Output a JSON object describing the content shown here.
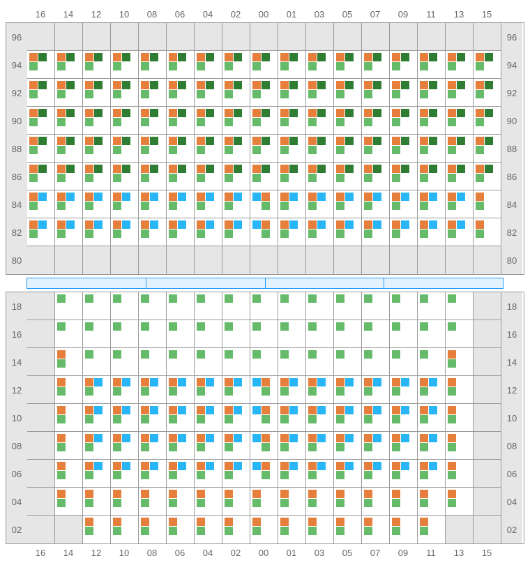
{
  "columns": [
    "16",
    "14",
    "12",
    "10",
    "08",
    "06",
    "04",
    "02",
    "00",
    "01",
    "03",
    "05",
    "07",
    "09",
    "11",
    "13",
    "15"
  ],
  "colors": {
    "orange": "#e67e3c",
    "darkgreen": "#2e7d32",
    "green": "#66bb6a",
    "blue": "#29b6f6",
    "empty": "#e6e6e6",
    "cellbg": "#ffffff",
    "border": "#999",
    "label": "#666",
    "sep_border": "#2196f3",
    "sep_fill": "#e3f2fd"
  },
  "top": {
    "rows": [
      "96",
      "94",
      "92",
      "90",
      "88",
      "86",
      "84",
      "82",
      "80"
    ],
    "patterns": {
      "E": {
        "empty": true
      },
      "A": {
        "r1": [
          "orange",
          "darkgreen"
        ],
        "r2": [
          "green"
        ]
      },
      "B": {
        "r1": [
          "orange",
          "blue"
        ],
        "r2": [
          "green"
        ]
      },
      "B2": {
        "r1": [
          "blue",
          "orange"
        ],
        "r2": [
          "",
          "green"
        ]
      },
      "C": {
        "r1": [
          "orange"
        ],
        "r2": [
          "green"
        ]
      }
    },
    "layout": [
      [
        "E",
        "E",
        "E",
        "E",
        "E",
        "E",
        "E",
        "E",
        "E",
        "E",
        "E",
        "E",
        "E",
        "E",
        "E",
        "E",
        "E"
      ],
      [
        "A",
        "A",
        "A",
        "A",
        "A",
        "A",
        "A",
        "A",
        "A",
        "A",
        "A",
        "A",
        "A",
        "A",
        "A",
        "A",
        "A"
      ],
      [
        "A",
        "A",
        "A",
        "A",
        "A",
        "A",
        "A",
        "A",
        "A",
        "A",
        "A",
        "A",
        "A",
        "A",
        "A",
        "A",
        "A"
      ],
      [
        "A",
        "A",
        "A",
        "A",
        "A",
        "A",
        "A",
        "A",
        "A",
        "A",
        "A",
        "A",
        "A",
        "A",
        "A",
        "A",
        "A"
      ],
      [
        "A",
        "A",
        "A",
        "A",
        "A",
        "A",
        "A",
        "A",
        "A",
        "A",
        "A",
        "A",
        "A",
        "A",
        "A",
        "A",
        "A"
      ],
      [
        "A",
        "A",
        "A",
        "A",
        "A",
        "A",
        "A",
        "A",
        "A",
        "A",
        "A",
        "A",
        "A",
        "A",
        "A",
        "A",
        "A"
      ],
      [
        "B",
        "B",
        "B",
        "B",
        "B",
        "B",
        "B",
        "B",
        "B2",
        "B",
        "B",
        "B",
        "B",
        "B",
        "B",
        "B",
        "C"
      ],
      [
        "B",
        "B",
        "B",
        "B",
        "B",
        "B",
        "B",
        "B",
        "B2",
        "B",
        "B",
        "B",
        "B",
        "B",
        "B",
        "B",
        "C"
      ],
      [
        "E",
        "E",
        "E",
        "E",
        "E",
        "E",
        "E",
        "E",
        "E",
        "E",
        "E",
        "E",
        "E",
        "E",
        "E",
        "E",
        "E"
      ]
    ]
  },
  "bot": {
    "rows": [
      "18",
      "16",
      "14",
      "12",
      "10",
      "08",
      "06",
      "04",
      "02"
    ],
    "patterns": {
      "E": {
        "empty": true
      },
      "G": {
        "r1": [
          "green"
        ]
      },
      "OG": {
        "r1": [
          "orange"
        ],
        "r2": [
          "green"
        ]
      },
      "OBG": {
        "r1": [
          "orange",
          "blue"
        ],
        "r2": [
          "green"
        ]
      },
      "BOG": {
        "r1": [
          "blue",
          "orange"
        ],
        "r2": [
          "",
          "green"
        ]
      }
    },
    "layout": [
      [
        "E",
        "G",
        "G",
        "G",
        "G",
        "G",
        "G",
        "G",
        "G",
        "G",
        "G",
        "G",
        "G",
        "G",
        "G",
        "G",
        "E"
      ],
      [
        "E",
        "G",
        "G",
        "G",
        "G",
        "G",
        "G",
        "G",
        "G",
        "G",
        "G",
        "G",
        "G",
        "G",
        "G",
        "G",
        "E"
      ],
      [
        "E",
        "OG",
        "G",
        "G",
        "G",
        "G",
        "G",
        "G",
        "G",
        "G",
        "G",
        "G",
        "G",
        "G",
        "G",
        "OG",
        "E"
      ],
      [
        "E",
        "OG",
        "OBG",
        "OBG",
        "OBG",
        "OBG",
        "OBG",
        "OBG",
        "BOG",
        "OBG",
        "OBG",
        "OBG",
        "OBG",
        "OBG",
        "OBG",
        "OG",
        "E"
      ],
      [
        "E",
        "OG",
        "OBG",
        "OBG",
        "OBG",
        "OBG",
        "OBG",
        "OBG",
        "BOG",
        "OBG",
        "OBG",
        "OBG",
        "OBG",
        "OBG",
        "OBG",
        "OG",
        "E"
      ],
      [
        "E",
        "OG",
        "OBG",
        "OBG",
        "OBG",
        "OBG",
        "OBG",
        "OBG",
        "BOG",
        "OBG",
        "OBG",
        "OBG",
        "OBG",
        "OBG",
        "OBG",
        "OG",
        "E"
      ],
      [
        "E",
        "OG",
        "OBG",
        "OBG",
        "OBG",
        "OBG",
        "OBG",
        "OBG",
        "BOG",
        "OBG",
        "OBG",
        "OBG",
        "OBG",
        "OBG",
        "OBG",
        "OG",
        "E"
      ],
      [
        "E",
        "OG",
        "OG",
        "OG",
        "OG",
        "OG",
        "OG",
        "OG",
        "OG",
        "OG",
        "OG",
        "OG",
        "OG",
        "OG",
        "OG",
        "OG",
        "E"
      ],
      [
        "E",
        "E",
        "OG",
        "OG",
        "OG",
        "OG",
        "OG",
        "OG",
        "OG",
        "OG",
        "OG",
        "OG",
        "OG",
        "OG",
        "OG",
        "E",
        "E"
      ]
    ]
  },
  "separator_segments": 4
}
